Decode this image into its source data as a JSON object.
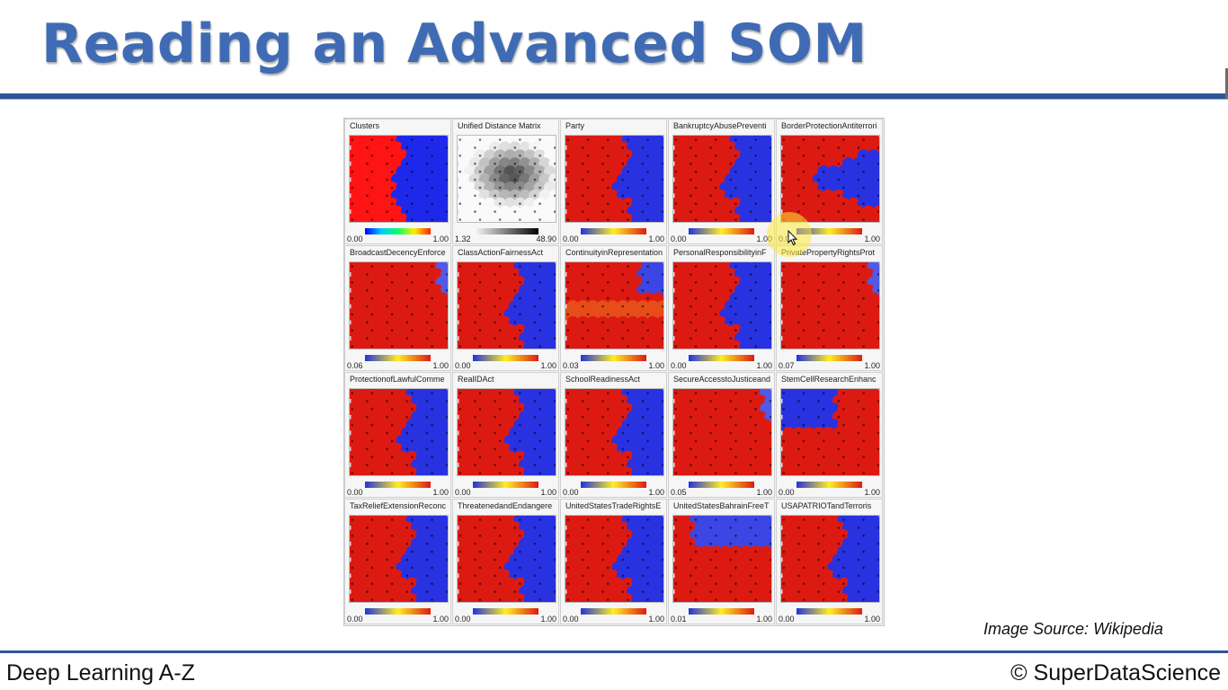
{
  "slide": {
    "title": "Reading an Advanced SOM",
    "source": "Image Source: Wikipedia",
    "footer_left": "Deep Learning A-Z",
    "footer_right": "© SuperDataScience"
  },
  "colors": {
    "title": "#3f6bb5",
    "rule": "#2f5597",
    "map_low": "#2233dd",
    "map_mid": "#ffee22",
    "map_high": "#dd1a12"
  },
  "figure": {
    "panels": [
      {
        "title": "Clusters",
        "min": "0.00",
        "max": "1.00",
        "pattern": "clusters"
      },
      {
        "title": "Unified Distance Matrix",
        "min": "1.32",
        "max": "48.90",
        "pattern": "udm"
      },
      {
        "title": "Party",
        "min": "0.00",
        "max": "1.00",
        "pattern": "split"
      },
      {
        "title": "BankruptcyAbusePreventi",
        "min": "0.00",
        "max": "1.00",
        "pattern": "split"
      },
      {
        "title": "BorderProtectionAntiterrori",
        "min": "0.00",
        "max": "1.00",
        "pattern": "wedge"
      },
      {
        "title": "BroadcastDecencyEnforce",
        "min": "0.06",
        "max": "1.00",
        "pattern": "mostred"
      },
      {
        "title": "ClassActionFairnessAct",
        "min": "0.00",
        "max": "1.00",
        "pattern": "split"
      },
      {
        "title": "ContinuityinRepresentation",
        "min": "0.03",
        "max": "1.00",
        "pattern": "patchy"
      },
      {
        "title": "PersonalResponsibilityinF",
        "min": "0.00",
        "max": "1.00",
        "pattern": "split"
      },
      {
        "title": "PrivatePropertyRightsProt",
        "min": "0.07",
        "max": "1.00",
        "pattern": "mostred"
      },
      {
        "title": "ProtectionofLawfulComme",
        "min": "0.00",
        "max": "1.00",
        "pattern": "split"
      },
      {
        "title": "RealIDAct",
        "min": "0.00",
        "max": "1.00",
        "pattern": "split"
      },
      {
        "title": "SchoolReadinessAct",
        "min": "0.00",
        "max": "1.00",
        "pattern": "split"
      },
      {
        "title": "SecureAccesstoJusticeand",
        "min": "0.05",
        "max": "1.00",
        "pattern": "mostred"
      },
      {
        "title": "StemCellResearchEnhanc",
        "min": "0.00",
        "max": "1.00",
        "pattern": "corner"
      },
      {
        "title": "TaxReliefExtensionReconc",
        "min": "0.00",
        "max": "1.00",
        "pattern": "split"
      },
      {
        "title": "ThreatenedandEndangere",
        "min": "0.00",
        "max": "1.00",
        "pattern": "split"
      },
      {
        "title": "UnitedStatesTradeRightsE",
        "min": "0.00",
        "max": "1.00",
        "pattern": "split"
      },
      {
        "title": "UnitedStatesBahrainFreeT",
        "min": "0.01",
        "max": "1.00",
        "pattern": "band"
      },
      {
        "title": "USAPATRIOTandTerroris",
        "min": "0.00",
        "max": "1.00",
        "pattern": "split"
      }
    ]
  }
}
